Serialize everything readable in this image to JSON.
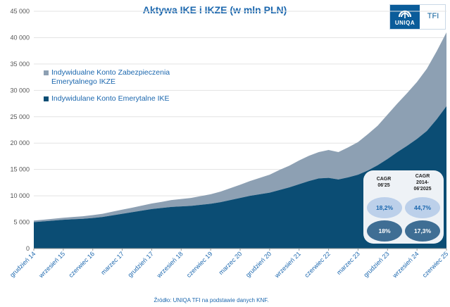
{
  "logo": {
    "word": "UNIQA",
    "suffix": "TFI"
  },
  "source_note": "Źródło: UNIQA TFI na podstawie danych KNF.",
  "colors": {
    "ikze": "#8da0b3",
    "ike": "#0b4d74",
    "accent": "#1b67ae"
  },
  "cagr": {
    "headers": [
      "CAGR\n06'25",
      "CAGR\n2014-\n06'2025"
    ],
    "ikze": [
      "18,2%",
      "44,7%"
    ],
    "ike": [
      "18%",
      "17,3%"
    ]
  },
  "chart_data": {
    "type": "area",
    "stacked": true,
    "title": "Aktywa IKE i IKZE (w mln PLN)",
    "xlabel": "",
    "ylabel": "",
    "ylim": [
      0,
      45000
    ],
    "yticks": [
      0,
      5000,
      10000,
      15000,
      20000,
      25000,
      30000,
      35000,
      40000,
      45000
    ],
    "ytick_labels": [
      "0",
      "5 000",
      "10 000",
      "15 000",
      "20 000",
      "25 000",
      "30 000",
      "35 000",
      "40 000",
      "45 000"
    ],
    "grid": true,
    "legend_position": "upper-left",
    "categories": [
      "grudzień 14",
      "wrzesień 15",
      "czerwiec 16",
      "marzec 17",
      "grudzień 17",
      "wrzesień 18",
      "czerwiec 19",
      "marzec 20",
      "grudzień 20",
      "wrzesień 21",
      "czerwiec 22",
      "marzec 23",
      "grudzień 23",
      "wrzesień 24",
      "czerwiec 25"
    ],
    "x_positions": [
      0,
      3,
      6,
      9,
      12,
      15,
      18,
      21,
      24,
      27,
      30,
      33,
      36,
      39,
      42
    ],
    "series": [
      {
        "name": "Indywidulane Konto Emerytalne IKE",
        "x": [
          0,
          1,
          2,
          3,
          4,
          5,
          6,
          7,
          8,
          9,
          10,
          11,
          12,
          13,
          14,
          15,
          16,
          17,
          18,
          19,
          20,
          21,
          22,
          23,
          24,
          25,
          26,
          27,
          28,
          29,
          30,
          31,
          32,
          33,
          34,
          35,
          36,
          37,
          38,
          39,
          40,
          41,
          42
        ],
        "values": [
          5000,
          5150,
          5300,
          5450,
          5550,
          5650,
          5800,
          6000,
          6300,
          6600,
          6900,
          7200,
          7500,
          7700,
          7900,
          8000,
          8100,
          8300,
          8500,
          8800,
          9200,
          9600,
          10000,
          10300,
          10600,
          11100,
          11600,
          12200,
          12800,
          13300,
          13400,
          13100,
          13500,
          14000,
          14800,
          15800,
          17000,
          18300,
          19500,
          20800,
          22300,
          24500,
          27000
        ]
      },
      {
        "name": "Indywidualne Konto Zabezpieczenia Emerytalnego IKZE",
        "x": [
          0,
          1,
          2,
          3,
          4,
          5,
          6,
          7,
          8,
          9,
          10,
          11,
          12,
          13,
          14,
          15,
          16,
          17,
          18,
          19,
          20,
          21,
          22,
          23,
          24,
          25,
          26,
          27,
          28,
          29,
          30,
          31,
          32,
          33,
          34,
          35,
          36,
          37,
          38,
          39,
          40,
          41,
          42
        ],
        "values": [
          300,
          330,
          360,
          400,
          440,
          480,
          550,
          600,
          700,
          780,
          850,
          950,
          1050,
          1150,
          1300,
          1400,
          1500,
          1650,
          1800,
          2000,
          2250,
          2500,
          2800,
          3100,
          3400,
          3800,
          4100,
          4500,
          4800,
          5000,
          5300,
          5200,
          5700,
          6200,
          6900,
          7500,
          8400,
          9200,
          10000,
          10800,
          11800,
          12900,
          14000
        ]
      }
    ]
  }
}
